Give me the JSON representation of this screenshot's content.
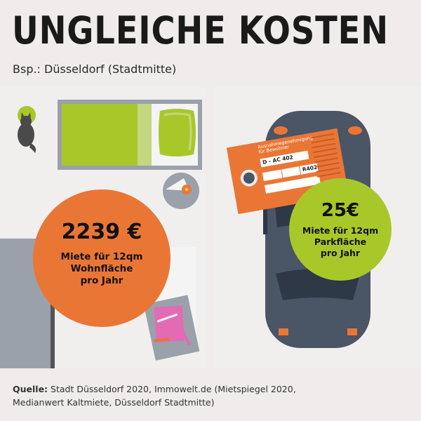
{
  "header": {
    "title": "UNGLEICHE KOSTEN",
    "subtitle": "Bsp.: Düsseldorf (Stadtmitte)"
  },
  "apartment": {
    "price": "2239 €",
    "desc_line1": "Miete für 12qm",
    "desc_line2": "Wohnfläche",
    "desc_line3": "pro Jahr"
  },
  "parking": {
    "price": "25€",
    "desc_line1": "Miete für 12qm",
    "desc_line2": "Parkfläche",
    "desc_line3": "pro Jahr",
    "permit": {
      "heading_line1": "Ausnahmegenehmigung",
      "heading_line2": "für Bewohner",
      "plate": "D - AC 402",
      "zone": "R402"
    }
  },
  "source": {
    "label": "Quelle:",
    "text_line1": "Stadt Düsseldorf 2020, Immowelt.de (Mietspiegel 2020,",
    "text_line2": "Medianwert Kaltmiete, Düsseldorf Stadtmitte)"
  },
  "colors": {
    "orange": "#ea7636",
    "green": "#a8c82a",
    "car": "#4a5566",
    "background": "#efeceb"
  }
}
